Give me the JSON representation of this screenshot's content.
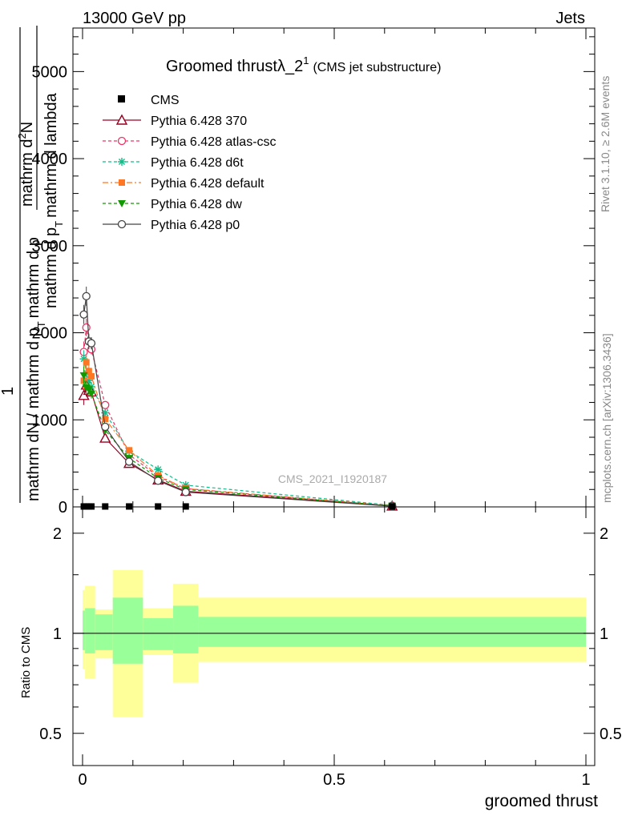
{
  "header": {
    "left": "13000 GeV pp",
    "right": "Jets"
  },
  "side_labels": {
    "rivet": "Rivet 3.1.10, ≥ 2.6M events",
    "mcplots": "mcplots.cern.ch [arXiv:1306.3436]"
  },
  "chart_data": [
    {
      "type": "line",
      "title": "Groomed thrustλ_2",
      "title_sup": "1",
      "subtitle": "(CMS jet substructure)",
      "watermark": "CMS_2021_I1920187",
      "xlabel": "groomed thrust",
      "ylabel_lines": [
        "mathrm d^{2}N",
        "mathrm d p_T mathrm d lambda",
        "1",
        "mathrm dN / mathrm d p_T"
      ],
      "ylabel_fragments": {
        "num_top": "mathrm d",
        "num_top_sup": "2",
        "num_top_end": "N",
        "den_top": "mathrm d p",
        "den_top_sub": "T",
        "den_top_end": "mathrm d lambda",
        "lead": "1",
        "den_bottom": "mathrm dN / mathrm d p",
        "den_bottom_sub": "T",
        "den_bottom_end": "mathrm d p"
      },
      "xlim": [
        -0.02,
        1.02
      ],
      "ylim": [
        0,
        5500
      ],
      "yticks": [
        0,
        1000,
        2000,
        3000,
        4000,
        5000
      ],
      "ytick_labels": [
        "0",
        "1000",
        "2000",
        "3000",
        "4000",
        "5000"
      ],
      "xticks": [
        0,
        0.5,
        1
      ],
      "xtick_labels": [
        "0",
        "0.5",
        "1"
      ],
      "legend_position": "top-left",
      "cms": {
        "name": "CMS",
        "x": [
          0.0025,
          0.0075,
          0.0125,
          0.0175,
          0.045,
          0.0925,
          0.15,
          0.205,
          0.615
        ],
        "y": [
          5,
          5,
          5,
          5,
          5,
          5,
          5,
          5,
          5
        ]
      },
      "series": [
        {
          "name": "Pythia 6.428 370",
          "color": "#990022",
          "dash": "",
          "marker": "triangle-open",
          "x": [
            0.0025,
            0.0075,
            0.0125,
            0.0175,
            0.045,
            0.0925,
            0.15,
            0.205,
            0.615
          ],
          "y": [
            1280,
            1400,
            1340,
            1320,
            790,
            500,
            310,
            180,
            10
          ],
          "yerr": [
            110,
            90,
            70,
            60,
            30,
            20,
            15,
            10,
            2
          ]
        },
        {
          "name": "Pythia 6.428 atlas-csc",
          "color": "#ee3366",
          "dash": "4,3",
          "marker": "circle-open",
          "x": [
            0.0025,
            0.0075,
            0.0125,
            0.0175,
            0.045,
            0.0925,
            0.15,
            0.205,
            0.615
          ],
          "y": [
            1780,
            2060,
            1900,
            1810,
            1170,
            600,
            350,
            210,
            14
          ],
          "yerr": [
            120,
            100,
            80,
            60,
            35,
            20,
            15,
            10,
            2
          ]
        },
        {
          "name": "Pythia 6.428 d6t",
          "color": "#11bb88",
          "dash": "4,3",
          "marker": "star",
          "x": [
            0.0025,
            0.0075,
            0.0125,
            0.0175,
            0.045,
            0.0925,
            0.15,
            0.205,
            0.615
          ],
          "y": [
            1700,
            1540,
            1450,
            1380,
            1080,
            640,
            430,
            250,
            18
          ],
          "yerr": [
            100,
            80,
            70,
            55,
            30,
            20,
            15,
            10,
            2
          ]
        },
        {
          "name": "Pythia 6.428 default",
          "color": "#ff7722",
          "dash": "7,3,2,3",
          "marker": "square",
          "x": [
            0.0025,
            0.0075,
            0.0125,
            0.0175,
            0.045,
            0.0925,
            0.15,
            0.205,
            0.615
          ],
          "y": [
            1450,
            1660,
            1560,
            1500,
            1010,
            650,
            360,
            210,
            12
          ],
          "yerr": [
            100,
            90,
            70,
            55,
            30,
            20,
            15,
            10,
            2
          ]
        },
        {
          "name": "Pythia 6.428 dw",
          "color": "#119900",
          "dash": "4,3",
          "marker": "triangle-down",
          "x": [
            0.0025,
            0.0075,
            0.0125,
            0.0175,
            0.045,
            0.0925,
            0.15,
            0.205,
            0.615
          ],
          "y": [
            1510,
            1370,
            1350,
            1300,
            880,
            560,
            330,
            200,
            11
          ],
          "yerr": [
            100,
            80,
            70,
            55,
            30,
            20,
            15,
            10,
            2
          ]
        },
        {
          "name": "Pythia 6.428 p0",
          "color": "#444444",
          "dash": "",
          "marker": "circle-open",
          "x": [
            0.0025,
            0.0075,
            0.0125,
            0.0175,
            0.045,
            0.0925,
            0.15,
            0.205,
            0.615
          ],
          "y": [
            2210,
            2420,
            1900,
            1880,
            920,
            520,
            300,
            170,
            8
          ],
          "yerr": [
            110,
            110,
            90,
            70,
            35,
            20,
            15,
            10,
            2
          ]
        }
      ]
    },
    {
      "type": "area",
      "ylabel": "Ratio to CMS",
      "xlabel": "groomed thrust",
      "yscale": "log",
      "ylim": [
        0.4,
        2.4
      ],
      "xlim": [
        -0.02,
        1.02
      ],
      "yticks": [
        0.5,
        1,
        2
      ],
      "ytick_labels": [
        "0.5",
        "1",
        "2"
      ],
      "xticks": [
        0,
        0.5,
        1
      ],
      "xtick_labels": [
        "0",
        "0.5",
        "1"
      ],
      "reference_line": 1,
      "bins": [
        {
          "x": [
            0.0,
            0.005
          ],
          "inner": [
            0.89,
            1.17
          ],
          "outer": [
            0.78,
            1.35
          ]
        },
        {
          "x": [
            0.005,
            0.025
          ],
          "inner": [
            0.87,
            1.19
          ],
          "outer": [
            0.73,
            1.39
          ]
        },
        {
          "x": [
            0.025,
            0.06
          ],
          "inner": [
            0.89,
            1.14
          ],
          "outer": [
            0.84,
            1.18
          ]
        },
        {
          "x": [
            0.06,
            0.12
          ],
          "inner": [
            0.81,
            1.28
          ],
          "outer": [
            0.56,
            1.55
          ]
        },
        {
          "x": [
            0.12,
            0.18
          ],
          "inner": [
            0.89,
            1.11
          ],
          "outer": [
            0.86,
            1.19
          ]
        },
        {
          "x": [
            0.18,
            0.23
          ],
          "inner": [
            0.87,
            1.21
          ],
          "outer": [
            0.71,
            1.41
          ]
        },
        {
          "x": [
            0.23,
            1.0
          ],
          "inner": [
            0.91,
            1.12
          ],
          "outer": [
            0.82,
            1.28
          ]
        }
      ],
      "colors": {
        "inner": "#99ff99",
        "outer": "#ffff99"
      }
    }
  ]
}
